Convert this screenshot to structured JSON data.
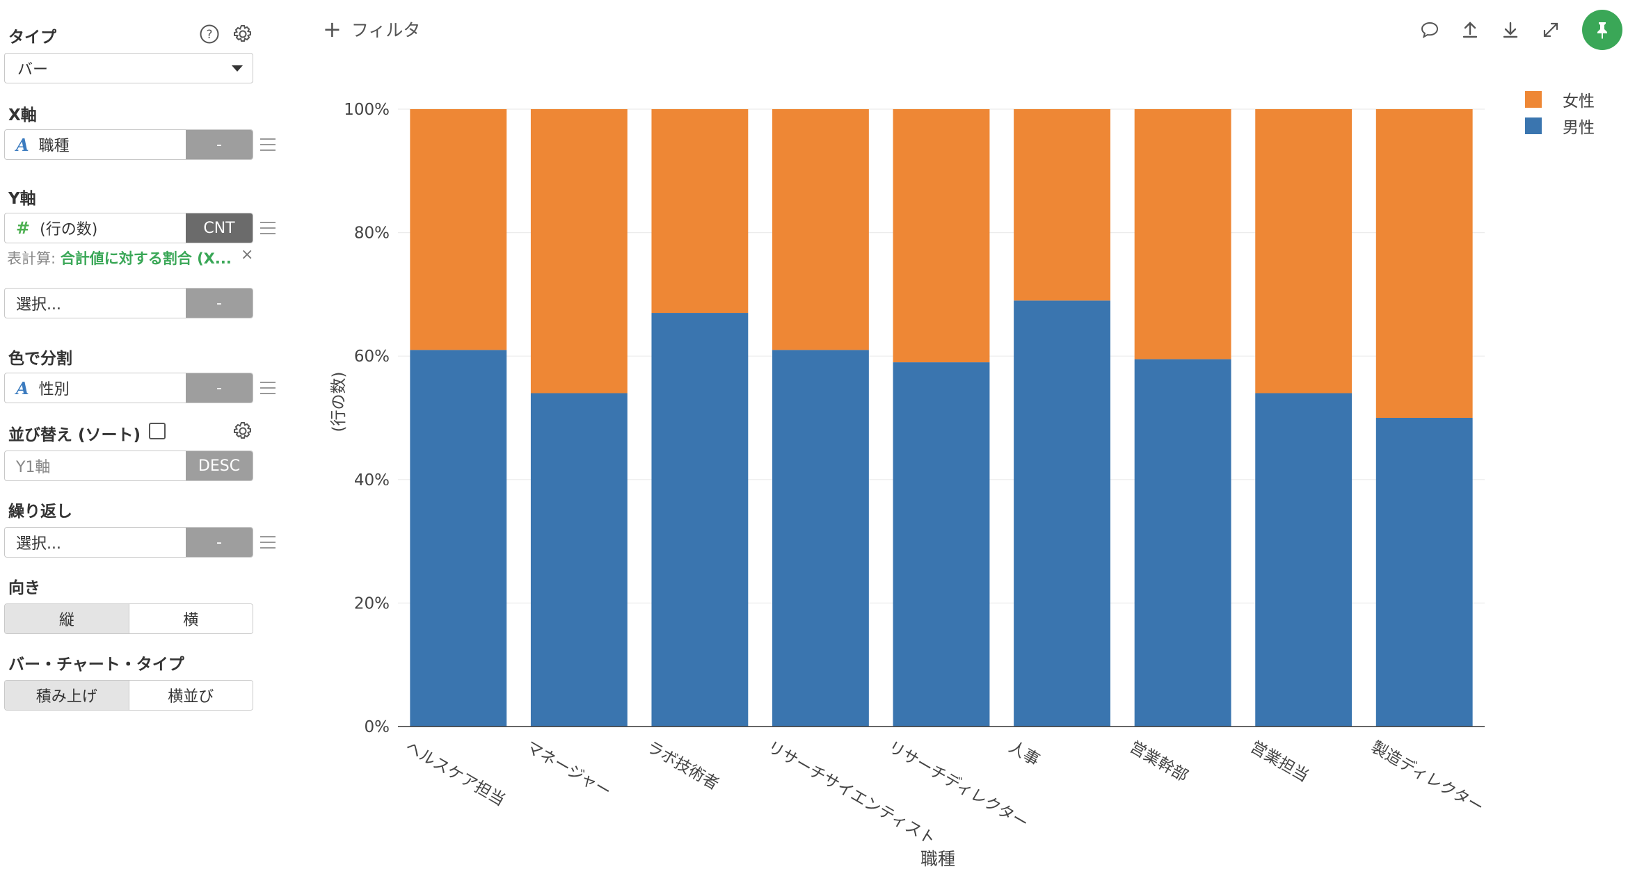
{
  "panel": {
    "type_title": "タイプ",
    "type_value": "バー",
    "x_title": "X軸",
    "x_icon": "A",
    "x_field": "職種",
    "x_agg": "-",
    "y_title": "Y軸",
    "y_icon": "#",
    "y_field": "(行の数)",
    "y_agg": "CNT",
    "calc_label": "表計算:",
    "calc_value": "合計値に対する割合 (X...",
    "y2_field": "選択...",
    "y2_agg": "-",
    "color_title": "色で分割",
    "color_icon": "A",
    "color_field": "性別",
    "color_agg": "-",
    "sort_title": "並び替え (ソート)",
    "sort_field": "Y1軸",
    "sort_agg": "DESC",
    "repeat_title": "繰り返し",
    "repeat_field": "選択...",
    "repeat_agg": "-",
    "orient_title": "向き",
    "orient_options": [
      "縦",
      "横"
    ],
    "bartype_title": "バー・チャート・タイプ",
    "bartype_options": [
      "積み上げ",
      "横並び"
    ]
  },
  "toolbar": {
    "filter_label": "フィルタ",
    "icons": [
      "comment-icon",
      "upload-icon",
      "download-icon",
      "expand-icon",
      "pin-icon"
    ]
  },
  "colors": {
    "female": "#ee8735",
    "male": "#3a75af",
    "accent": "#3aa757"
  },
  "chart_data": {
    "type": "bar",
    "stacked": true,
    "title": "",
    "xlabel": "職種",
    "ylabel": "(行の数)",
    "ylim": [
      0,
      100
    ],
    "yticks": [
      "0%",
      "20%",
      "40%",
      "60%",
      "80%",
      "100%"
    ],
    "legend_position": "top-right",
    "grid": true,
    "categories": [
      "ヘルスケア担当",
      "マネージャー",
      "ラボ技術者",
      "リサーチサイエンティスト",
      "リサーチディレクター",
      "人事",
      "営業幹部",
      "営業担当",
      "製造ディレクター"
    ],
    "series": [
      {
        "name": "男性",
        "color": "#3a75af",
        "values": [
          61,
          54,
          67,
          61,
          59,
          69,
          59.5,
          54,
          50
        ]
      },
      {
        "name": "女性",
        "color": "#ee8735",
        "values": [
          39,
          46,
          33,
          39,
          41,
          31,
          40.5,
          46,
          50
        ]
      }
    ],
    "legend": [
      "女性",
      "男性"
    ]
  }
}
